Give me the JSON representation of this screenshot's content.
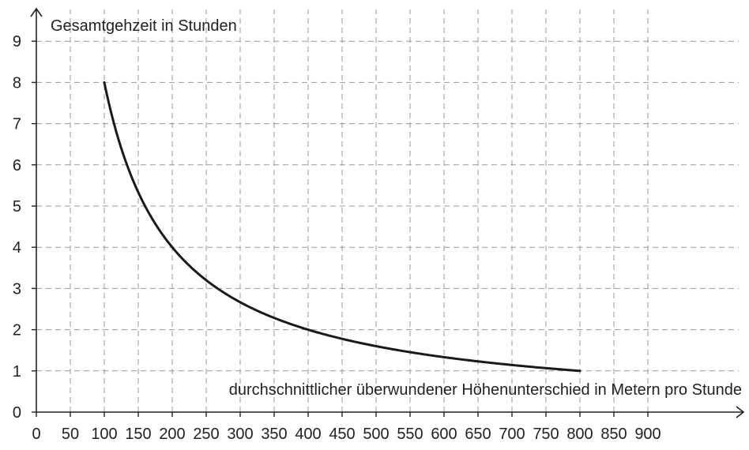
{
  "chart_data": {
    "type": "line",
    "xlabel": "durchschnittlicher überwundener Höhenunterschied in Metern pro Stunde",
    "ylabel": "Gesamtgehzeit in Stunden",
    "xlim": [
      0,
      900
    ],
    "ylim": [
      0,
      9
    ],
    "x_ticks": [
      0,
      50,
      100,
      150,
      200,
      250,
      300,
      350,
      400,
      450,
      500,
      550,
      600,
      650,
      700,
      750,
      800,
      850,
      900
    ],
    "y_ticks": [
      0,
      1,
      2,
      3,
      4,
      5,
      6,
      7,
      8,
      9
    ],
    "grid": true,
    "series": [
      {
        "x": [
          100,
          120,
          140,
          160,
          180,
          200,
          250,
          300,
          350,
          400,
          450,
          500,
          550,
          600,
          650,
          700,
          750,
          800
        ],
        "y": [
          8,
          6.67,
          5.71,
          5,
          4.44,
          4,
          3.2,
          2.67,
          2.29,
          2,
          1.78,
          1.6,
          1.45,
          1.33,
          1.23,
          1.14,
          1.07,
          1
        ],
        "color": "#1a1a1a"
      }
    ]
  }
}
